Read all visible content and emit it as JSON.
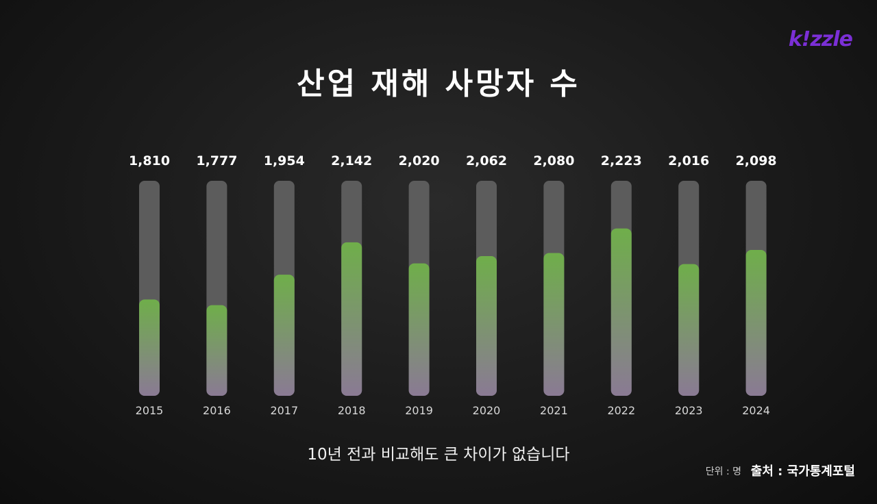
{
  "logo": "k!zzle",
  "caption": "10년 전과 비교해도 큰 차이가 없습니다",
  "unit": "단위 : 명",
  "source": "출처 : 국가통계포털",
  "colors": {
    "track": "#5c5c5c",
    "fill_top": "#6fae4a",
    "fill_bottom": "#8a7a94",
    "logo": "#7b2fd6"
  },
  "chart_data": {
    "type": "bar",
    "title": "산업 재해 사망자 수",
    "categories": [
      "2015",
      "2016",
      "2017",
      "2018",
      "2019",
      "2020",
      "2021",
      "2022",
      "2023",
      "2024"
    ],
    "values": [
      1810,
      1777,
      1954,
      2142,
      2020,
      2062,
      2080,
      2223,
      2016,
      2098
    ],
    "value_labels": [
      "1,810",
      "1,777",
      "1,954",
      "2,142",
      "2,020",
      "2,062",
      "2,080",
      "2,223",
      "2,016",
      "2,098"
    ],
    "ylim": [
      1250,
      2500
    ],
    "grid": false,
    "legend": "none"
  }
}
